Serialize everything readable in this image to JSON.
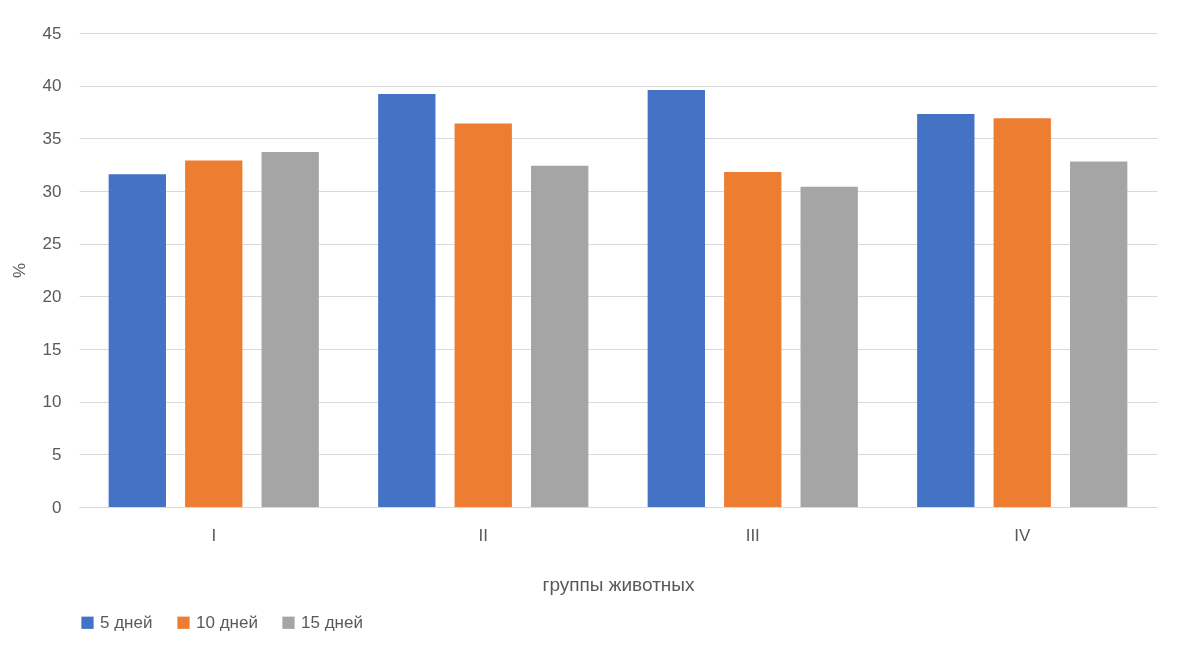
{
  "chart_data": {
    "type": "bar",
    "xlabel": "группы животных",
    "ylabel": "%",
    "categories": [
      "I",
      "II",
      "III",
      "IV"
    ],
    "series": [
      {
        "name": "5 дней",
        "color": "#4472c4",
        "values": [
          31.6,
          39.2,
          39.6,
          37.3
        ]
      },
      {
        "name": "10 дней",
        "color": "#ed7d31",
        "values": [
          32.9,
          36.4,
          31.8,
          36.9
        ]
      },
      {
        "name": "15 дней",
        "color": "#a5a5a5",
        "values": [
          33.7,
          32.4,
          30.4,
          32.8
        ]
      }
    ],
    "ylim": [
      0,
      45
    ],
    "yticks": [
      0,
      5,
      10,
      15,
      20,
      25,
      30,
      35,
      40,
      45
    ],
    "grid": "y",
    "legend": "bottom"
  }
}
